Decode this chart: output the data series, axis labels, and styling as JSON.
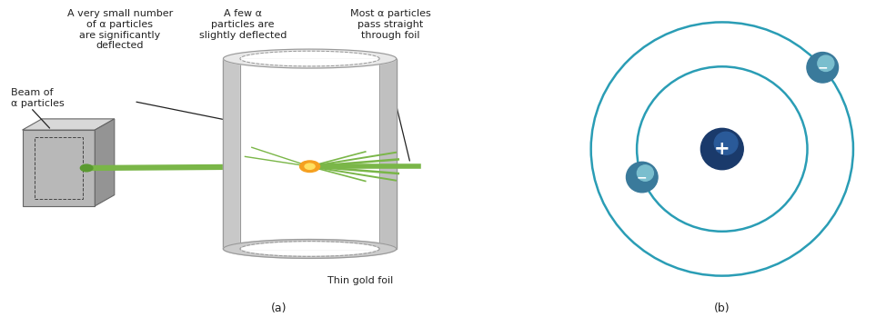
{
  "bg_color": "#ffffff",
  "label_color": "#222222",
  "beam_color": "#7ab648",
  "orbit_color": "#2a9db5",
  "nucleus_color": "#1a3a6b",
  "electron_color_dark": "#3a7a9b",
  "electron_color_light": "#7abece",
  "box_label": "Beam of\nα particles",
  "label1": "A very small number\nof α particles\nare significantly\ndeflected",
  "label2": "A few α\nparticles are\nslightly deflected",
  "label3": "Most α particles\npass straight\nthrough foil",
  "label4": "Thin gold foil",
  "label_a": "(a)",
  "label_b": "(b)",
  "font_size": 8.0
}
